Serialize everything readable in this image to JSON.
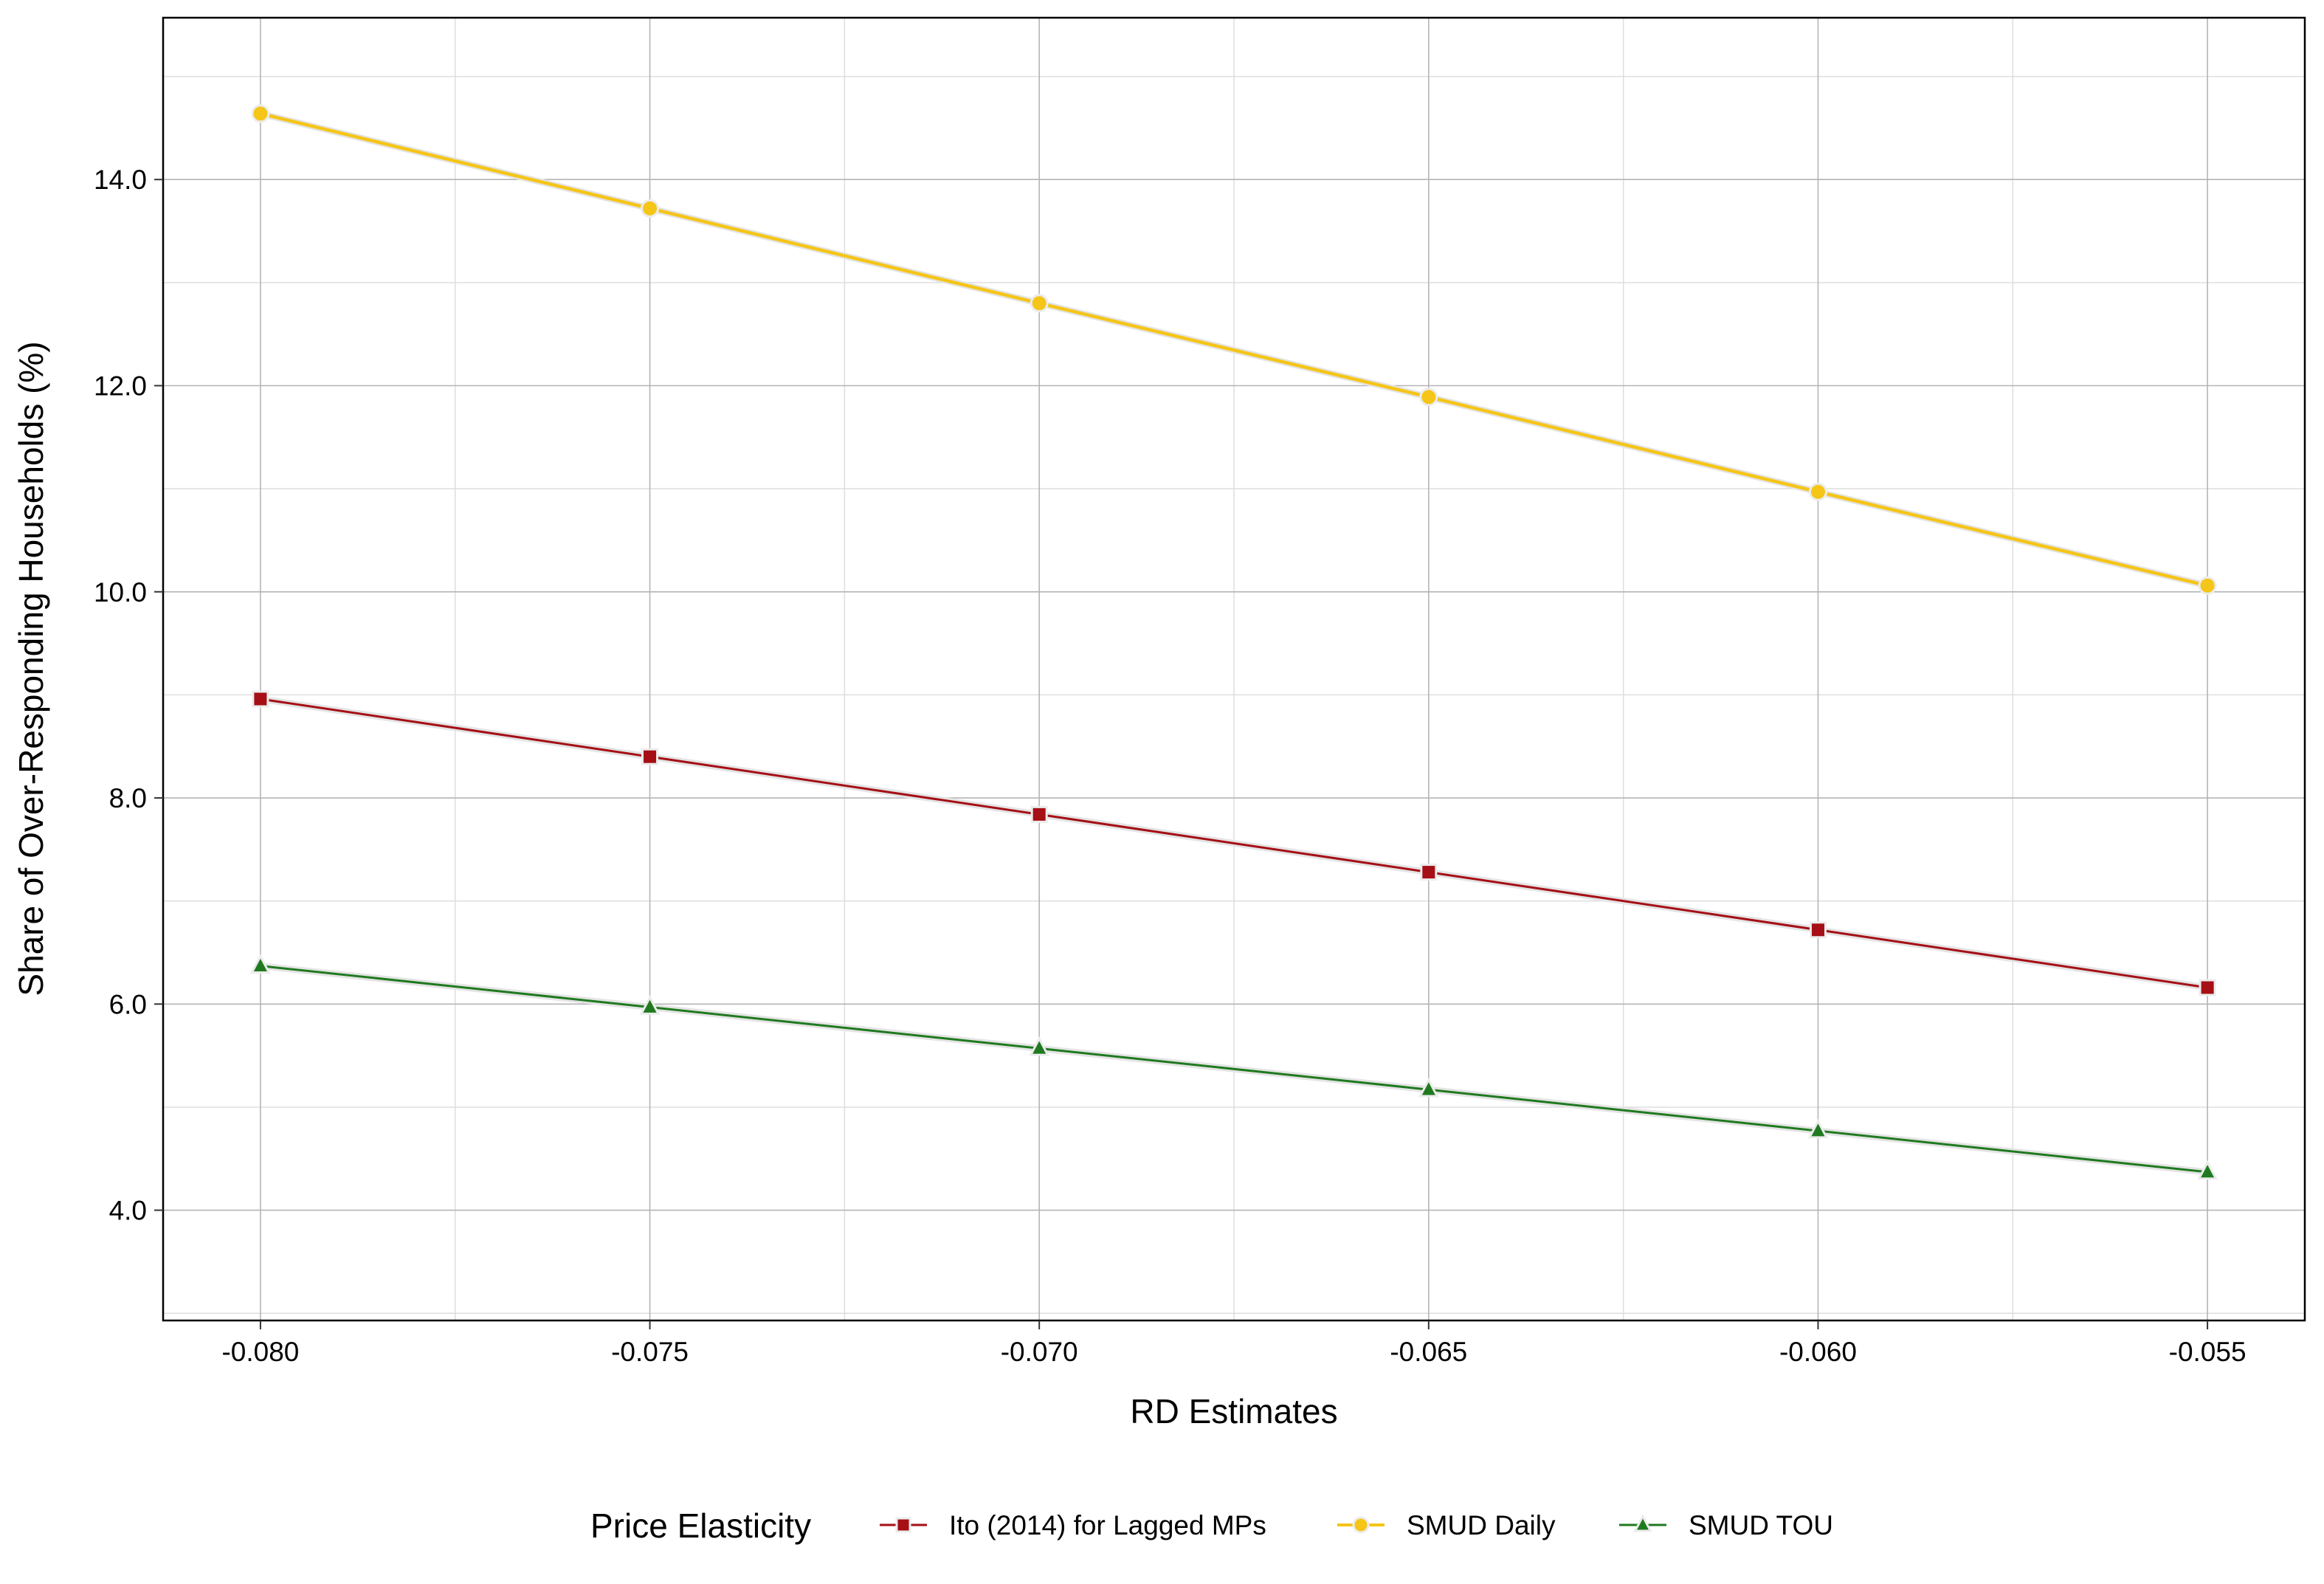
{
  "chart_data": {
    "type": "line",
    "title": "",
    "xlabel": "RD Estimates",
    "ylabel": "Share of Over-Responding Households   (%)",
    "x": [
      -0.08,
      -0.075,
      -0.07,
      -0.065,
      -0.06,
      -0.055
    ],
    "x_tick_labels": [
      "-0.080",
      "-0.075",
      "-0.070",
      "-0.065",
      "-0.060",
      "-0.055"
    ],
    "xlim": [
      -0.08125,
      -0.05375
    ],
    "y_ticks": [
      4.0,
      6.0,
      8.0,
      10.0,
      12.0,
      14.0
    ],
    "y_tick_labels": [
      "4.0",
      "6.0",
      "8.0",
      "10.0",
      "12.0",
      "14.0"
    ],
    "ylim": [
      2.93,
      15.57
    ],
    "grid": true,
    "legend": {
      "title": "Price Elasticity",
      "placement": "bottom"
    },
    "series": [
      {
        "name": "Ito (2014) for Lagged MPs",
        "color": "#a50f15",
        "marker": "square",
        "values": [
          8.96,
          8.4,
          7.84,
          7.28,
          6.72,
          6.16
        ]
      },
      {
        "name": "SMUD Daily",
        "color": "#f5c518",
        "marker": "circle",
        "values": [
          14.64,
          13.72,
          12.8,
          11.89,
          10.97,
          10.06
        ]
      },
      {
        "name": "SMUD TOU",
        "color": "#1f7a1f",
        "marker": "triangle",
        "values": [
          6.37,
          5.97,
          5.57,
          5.17,
          4.77,
          4.37
        ]
      }
    ]
  }
}
